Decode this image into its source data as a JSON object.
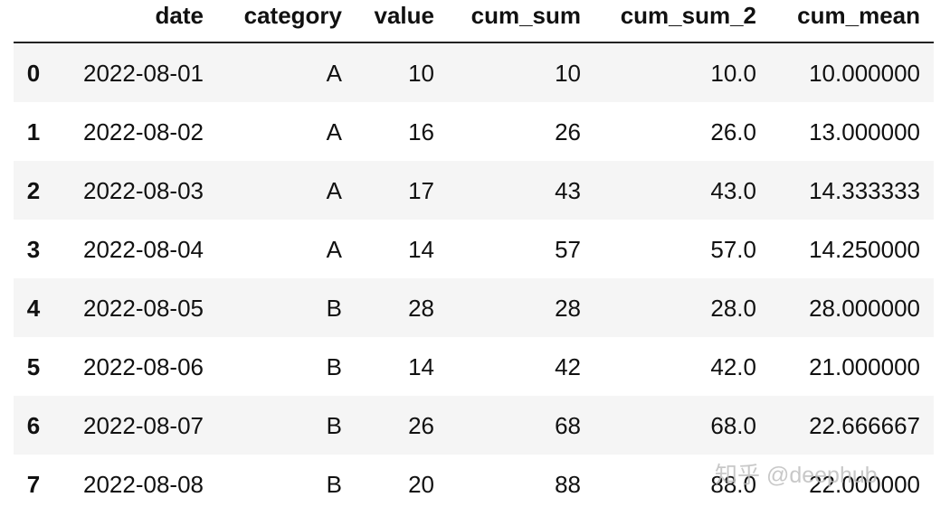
{
  "table": {
    "columns": [
      "date",
      "category",
      "value",
      "cum_sum",
      "cum_sum_2",
      "cum_mean"
    ],
    "index": [
      "0",
      "1",
      "2",
      "3",
      "4",
      "5",
      "6",
      "7"
    ],
    "rows": [
      [
        "2022-08-01",
        "A",
        "10",
        "10",
        "10.0",
        "10.000000"
      ],
      [
        "2022-08-02",
        "A",
        "16",
        "26",
        "26.0",
        "13.000000"
      ],
      [
        "2022-08-03",
        "A",
        "17",
        "43",
        "43.0",
        "14.333333"
      ],
      [
        "2022-08-04",
        "A",
        "14",
        "57",
        "57.0",
        "14.250000"
      ],
      [
        "2022-08-05",
        "B",
        "28",
        "28",
        "28.0",
        "28.000000"
      ],
      [
        "2022-08-06",
        "B",
        "14",
        "42",
        "42.0",
        "21.000000"
      ],
      [
        "2022-08-07",
        "B",
        "26",
        "68",
        "68.0",
        "22.666667"
      ],
      [
        "2022-08-08",
        "B",
        "20",
        "88",
        "88.0",
        "22.000000"
      ]
    ]
  },
  "watermark": "知乎 @deephub"
}
